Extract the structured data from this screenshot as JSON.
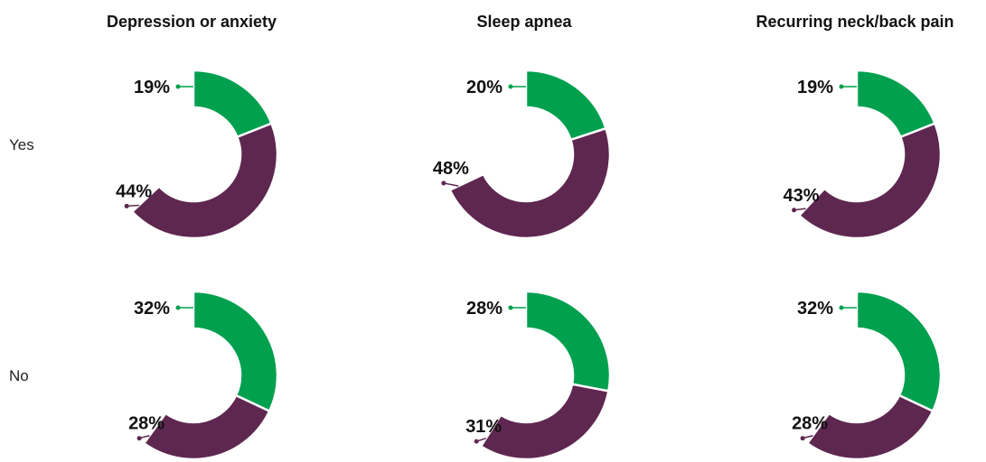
{
  "colors": {
    "green": "#00A04F",
    "purple": "#5E2750",
    "separator": "#ffffff"
  },
  "chart_data": {
    "type": "pie",
    "donut": true,
    "columns": [
      "Depression or anxiety",
      "Sleep apnea",
      "Recurring neck/back pain"
    ],
    "rows": [
      "Yes",
      "No"
    ],
    "series": [
      {
        "name": "",
        "color": "#00A04F"
      },
      {
        "name": "",
        "color": "#5E2750"
      }
    ],
    "cells": [
      {
        "row": "Yes",
        "column": "Depression or anxiety",
        "values": [
          19,
          44
        ],
        "labels": [
          "19%",
          "44%"
        ]
      },
      {
        "row": "Yes",
        "column": "Sleep apnea",
        "values": [
          20,
          48
        ],
        "labels": [
          "20%",
          "48%"
        ]
      },
      {
        "row": "Yes",
        "column": "Recurring neck/back pain",
        "values": [
          19,
          43
        ],
        "labels": [
          "19%",
          "43%"
        ]
      },
      {
        "row": "No",
        "column": "Depression or anxiety",
        "values": [
          32,
          28
        ],
        "labels": [
          "32%",
          "28%"
        ]
      },
      {
        "row": "No",
        "column": "Sleep apnea",
        "values": [
          28,
          31
        ],
        "labels": [
          "28%",
          "31%"
        ]
      },
      {
        "row": "No",
        "column": "Recurring neck/back pain",
        "values": [
          32,
          28
        ],
        "labels": [
          "32%",
          "28%"
        ]
      }
    ]
  }
}
